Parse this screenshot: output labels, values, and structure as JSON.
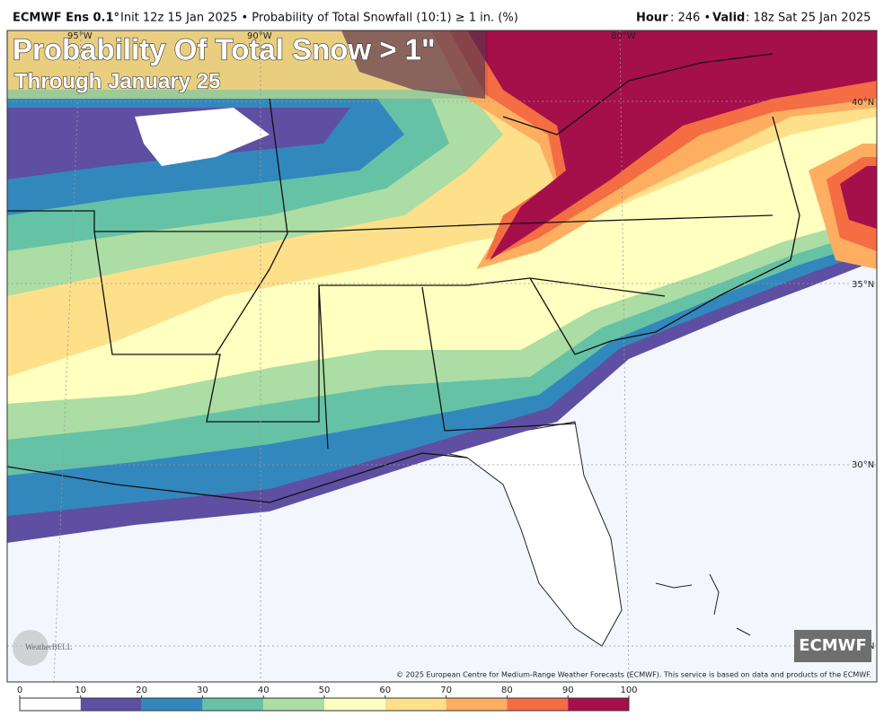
{
  "header": {
    "model": "ECMWF Ens 0.1°",
    "info": "Init 12z 15 Jan 2025 • Probability of Total Snowfall (10:1) ≥ 1 in. (%)",
    "hour_label": "Hour",
    "hour_value": ": 246 •",
    "valid_label": "Valid",
    "valid_value": ": 18z Sat 25 Jan 2025"
  },
  "map": {
    "title": "Probability Of Total Snow > 1\"",
    "subtitle": "Through January 25",
    "lat_labels": [
      "40°N",
      "35°N",
      "30°N",
      "N"
    ],
    "lon_labels": [
      "95°W",
      "90°W",
      "80°W"
    ],
    "logo": "WeatherBELL",
    "badge": "ECMWF",
    "credit": "© 2025 European Centre for Medium-Range Weather Forecasts (ECMWF). This service is based on data and products of the ECMWF."
  },
  "colorbar": {
    "ticks": [
      0,
      10,
      20,
      30,
      40,
      50,
      60,
      70,
      80,
      90,
      100
    ],
    "colors": [
      "#ffffff",
      "#5e4fa2",
      "#3288bd",
      "#66c2a5",
      "#abdda4",
      "#ffffbf",
      "#fee08b",
      "#fdae61",
      "#f46d43",
      "#a50f4a"
    ]
  }
}
